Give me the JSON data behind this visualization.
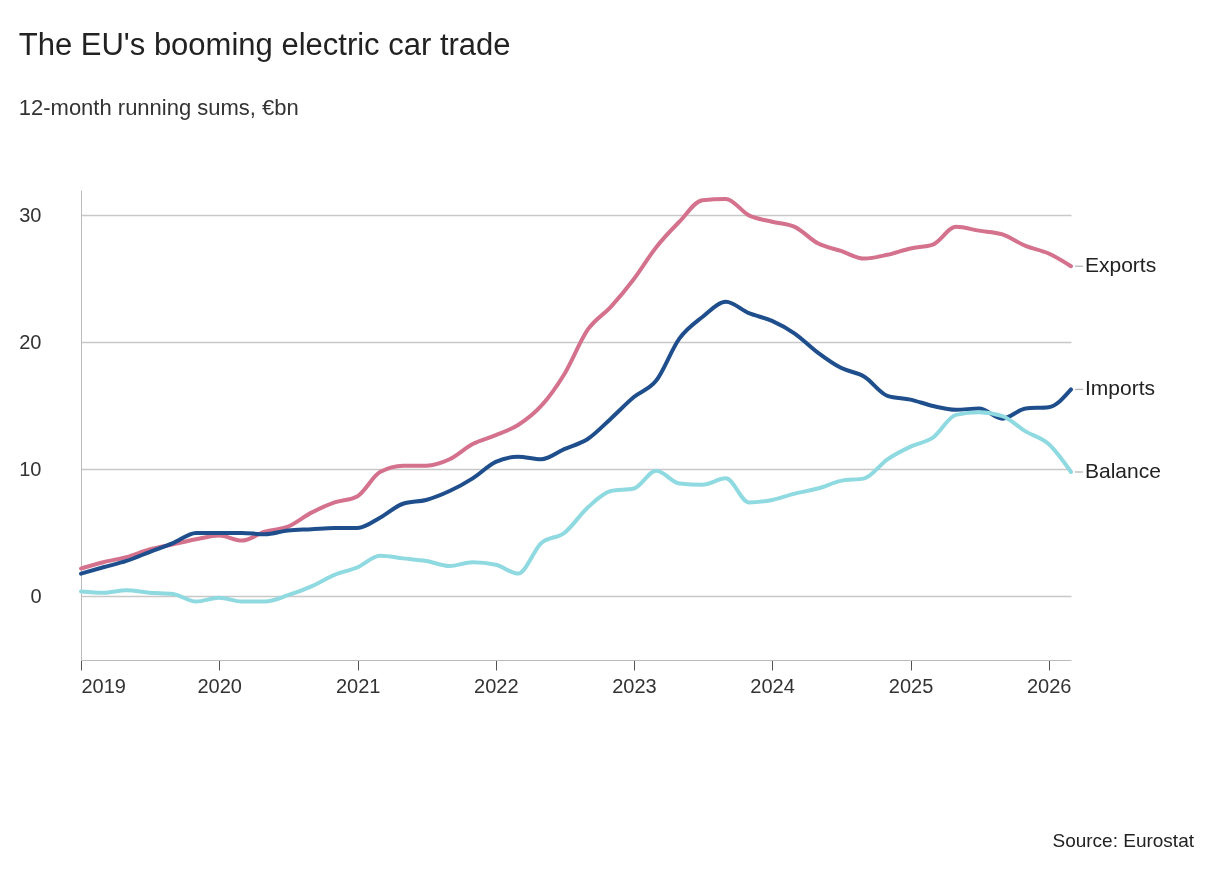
{
  "chart_data": {
    "type": "line",
    "title": "The EU's booming electric car trade",
    "subtitle": "12-month running sums, €bn",
    "x": [
      "2019-01",
      "2019-03",
      "2019-05",
      "2019-07",
      "2019-09",
      "2019-11",
      "2020-01",
      "2020-03",
      "2020-05",
      "2020-07",
      "2020-09",
      "2020-11",
      "2021-01",
      "2021-03",
      "2021-05",
      "2021-07",
      "2021-09",
      "2021-11",
      "2022-01",
      "2022-03",
      "2022-05",
      "2022-07",
      "2022-09",
      "2022-11",
      "2023-01",
      "2023-03",
      "2023-05",
      "2023-07",
      "2023-09",
      "2023-11",
      "2024-01",
      "2024-03",
      "2024-05",
      "2024-07",
      "2024-09",
      "2024-11",
      "2025-01",
      "2025-03",
      "2025-05",
      "2025-07",
      "2025-09",
      "2025-11",
      "2026-01",
      "2026-03"
    ],
    "series": [
      {
        "name": "Exports",
        "color": "#d4718d",
        "values": [
          2.2,
          2.7,
          3.1,
          3.7,
          4.1,
          4.5,
          4.8,
          4.4,
          5.1,
          5.5,
          6.6,
          7.4,
          7.9,
          9.8,
          10.3,
          10.3,
          10.8,
          12.0,
          12.7,
          13.5,
          15.0,
          17.5,
          21.0,
          22.8,
          25.0,
          27.5,
          29.5,
          31.2,
          31.3,
          30.0,
          29.5,
          29.1,
          27.8,
          27.2,
          26.6,
          26.9,
          27.4,
          27.7,
          29.1,
          28.8,
          28.5,
          27.6,
          27.0,
          26.0
        ]
      },
      {
        "name": "Imports",
        "color": "#1f4e8c",
        "values": [
          1.8,
          2.3,
          2.8,
          3.5,
          4.2,
          5.0,
          5.0,
          5.0,
          4.9,
          5.2,
          5.3,
          5.4,
          5.4,
          6.2,
          7.3,
          7.6,
          8.3,
          9.3,
          10.6,
          11.0,
          10.8,
          11.6,
          12.4,
          14.0,
          15.7,
          17.0,
          20.3,
          22.0,
          23.2,
          22.3,
          21.7,
          20.7,
          19.2,
          18.0,
          17.3,
          15.8,
          15.5,
          15.0,
          14.7,
          14.8,
          14.0,
          14.8,
          14.9,
          16.3
        ]
      },
      {
        "name": "Balance",
        "color": "#8fd9e0",
        "values": [
          0.4,
          0.3,
          0.5,
          0.3,
          0.2,
          -0.4,
          -0.1,
          -0.4,
          -0.4,
          0.1,
          0.8,
          1.7,
          2.3,
          3.2,
          3.0,
          2.8,
          2.4,
          2.7,
          2.5,
          1.8,
          4.2,
          5.0,
          7.0,
          8.3,
          8.5,
          9.9,
          8.9,
          8.8,
          9.3,
          7.4,
          7.6,
          8.1,
          8.5,
          9.1,
          9.3,
          10.8,
          11.8,
          12.5,
          14.3,
          14.5,
          14.2,
          13.0,
          12.0,
          9.8
        ]
      }
    ],
    "xlim": [
      "2019-01",
      "2026-03"
    ],
    "xticks": [
      "2019",
      "2020",
      "2021",
      "2022",
      "2023",
      "2024",
      "2025",
      "2026"
    ],
    "ylim": [
      -5,
      32
    ],
    "yticks": [
      0,
      10,
      20,
      30
    ],
    "grid": "y",
    "legend": false,
    "line_style": "solid",
    "annotations": [
      "Source: Eurostat"
    ]
  }
}
